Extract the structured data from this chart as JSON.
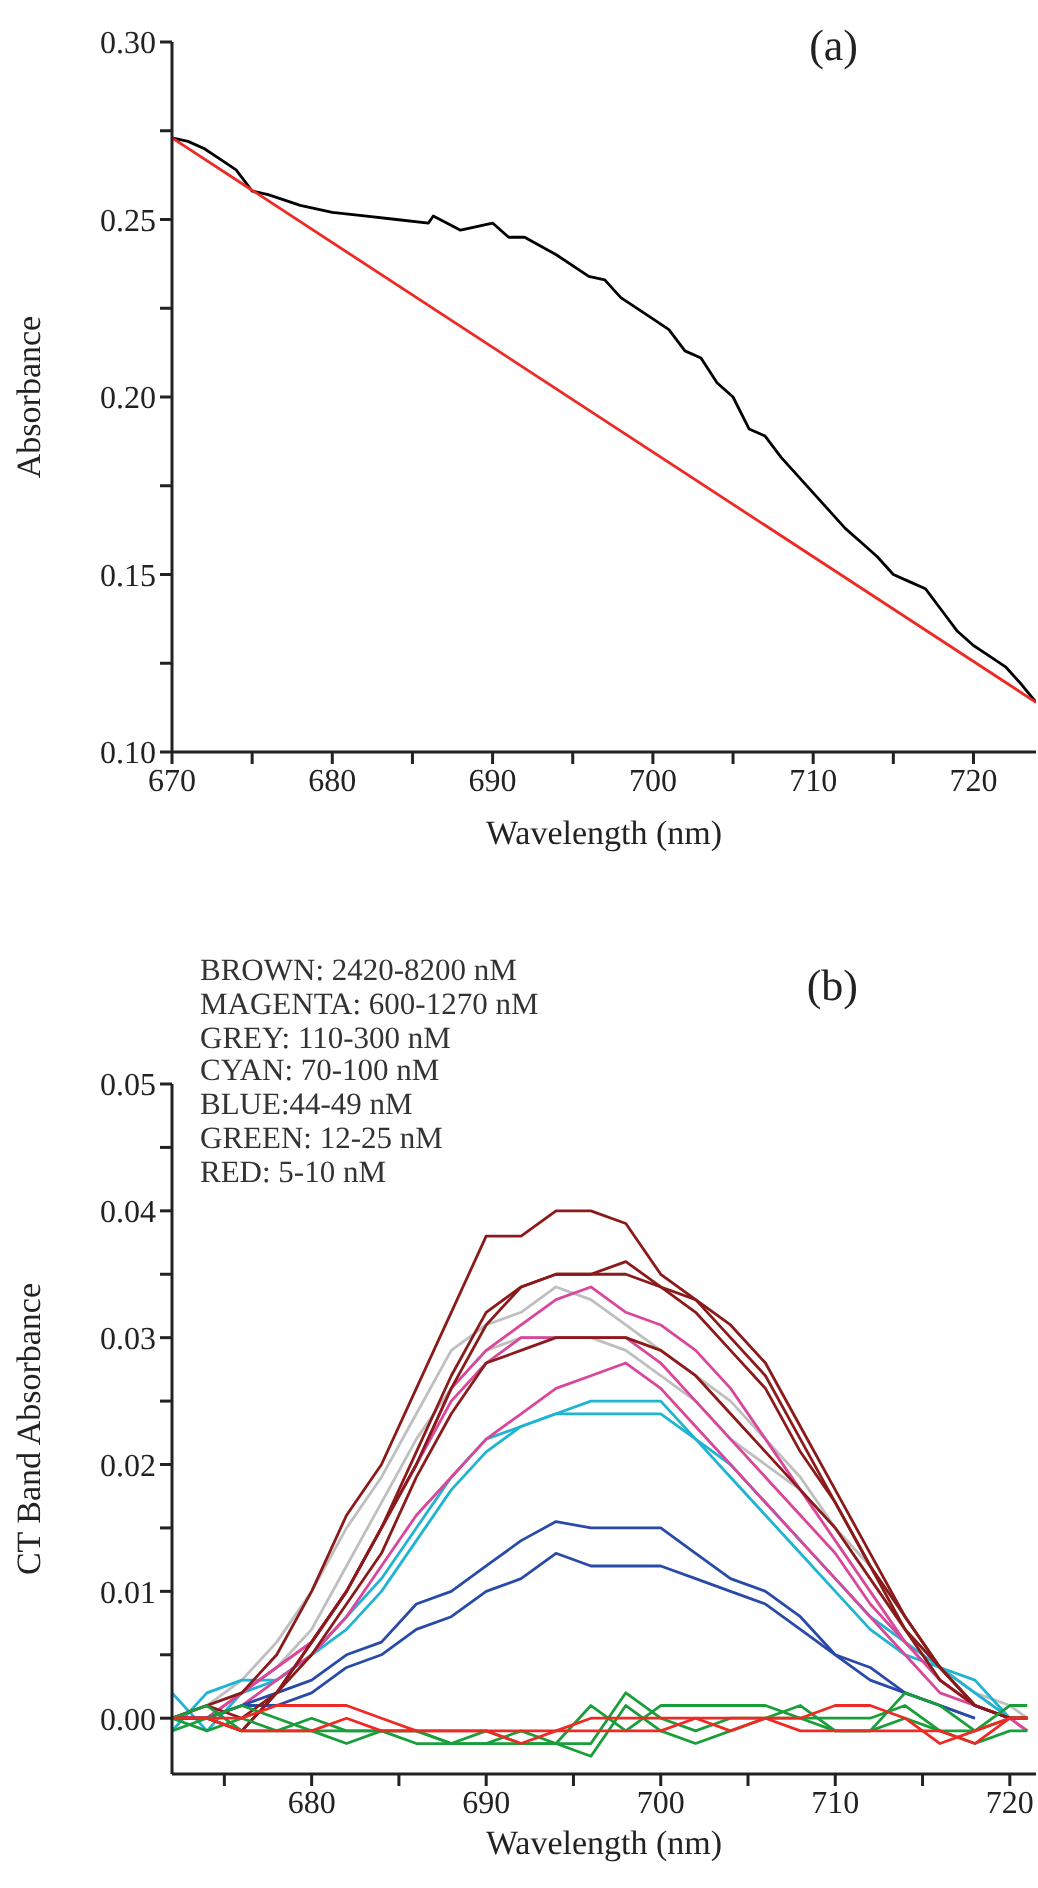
{
  "chart_data": [
    {
      "type": "line",
      "title": "(a)",
      "xlabel": "Wavelength (nm)",
      "ylabel": "Absorbance",
      "xlim": [
        670,
        723.9
      ],
      "ylim": [
        0.1,
        0.3
      ],
      "xticks": [
        670,
        {
          "value": 675,
          "label": null
        },
        680,
        {
          "value": 685,
          "label": null
        },
        690,
        {
          "value": 695,
          "label": null
        },
        700,
        {
          "value": 705,
          "label": null
        },
        710,
        {
          "value": 715,
          "label": null
        },
        720
      ],
      "yticks": [
        {
          "value": 0.1,
          "label": "0.10"
        },
        {
          "value": 0.125,
          "label": null
        },
        0.15,
        {
          "value": 0.175,
          "label": null
        },
        {
          "value": 0.2,
          "label": "0.20"
        },
        {
          "value": 0.225,
          "label": null
        },
        0.25,
        {
          "value": 0.275,
          "label": null
        },
        {
          "value": 0.3,
          "label": "0.30"
        }
      ],
      "grid": false,
      "legend": false,
      "marker": "none",
      "line_style": "solid",
      "series": [
        {
          "color": "#000000",
          "x": [
            670,
            671,
            672,
            673,
            674,
            675,
            676,
            678,
            680,
            682,
            684,
            686,
            686.3,
            688,
            690,
            691,
            692,
            694,
            696,
            697,
            698,
            700,
            701,
            702,
            703,
            704,
            705,
            706,
            707,
            708,
            709,
            710,
            711,
            712,
            713,
            714,
            715,
            716,
            717,
            718,
            719,
            720,
            721,
            722,
            723,
            723.9
          ],
          "values": [
            0.273,
            0.272,
            0.27,
            0.267,
            0.264,
            0.258,
            0.257,
            0.254,
            0.252,
            0.251,
            0.25,
            0.249,
            0.251,
            0.247,
            0.249,
            0.245,
            0.245,
            0.24,
            0.234,
            0.233,
            0.228,
            0.222,
            0.219,
            0.213,
            0.211,
            0.204,
            0.2,
            0.191,
            0.189,
            0.183,
            0.178,
            0.173,
            0.168,
            0.163,
            0.159,
            0.155,
            0.15,
            0.148,
            0.146,
            0.14,
            0.134,
            0.13,
            0.127,
            0.124,
            0.119,
            0.114
          ]
        },
        {
          "color": "#ee2a24",
          "x": [
            670,
            723.9
          ],
          "values": [
            0.273,
            0.114
          ]
        }
      ]
    },
    {
      "type": "line",
      "title": "(b)",
      "xlabel": "Wavelength (nm)",
      "ylabel": "CT Band Absorbance",
      "xlim": [
        672,
        721.5
      ],
      "ylim": [
        -0.0044,
        0.05
      ],
      "xticks": [
        {
          "value": 675,
          "label": null
        },
        680,
        {
          "value": 685,
          "label": null
        },
        690,
        {
          "value": 695,
          "label": null
        },
        700,
        {
          "value": 705,
          "label": null
        },
        710,
        {
          "value": 715,
          "label": null
        },
        720
      ],
      "yticks": [
        {
          "value": 0,
          "label": "0.00"
        },
        {
          "value": 0.005,
          "label": null
        },
        0.01,
        {
          "value": 0.015,
          "label": null
        },
        0.02,
        {
          "value": 0.025,
          "label": null
        },
        0.03,
        {
          "value": 0.035,
          "label": null
        },
        0.04,
        {
          "value": 0.045,
          "label": null
        },
        0.05
      ],
      "grid": false,
      "legend": false,
      "marker": "none",
      "line_style": "solid",
      "annotations": [
        "BROWN: 2420-8200 nM",
        "MAGENTA: 600-1270 nM",
        "GREY: 110-300 nM",
        "CYAN: 70-100 nM",
        "BLUE:44-49 nM",
        "GREEN: 12-25 nM",
        "RED: 5-10 nM"
      ],
      "x": [
        672,
        674,
        676,
        678,
        680,
        682,
        684,
        686,
        688,
        690,
        692,
        694,
        696,
        698,
        700,
        702,
        704,
        706,
        708,
        710,
        712,
        714,
        716,
        718,
        720,
        721
      ],
      "series": [
        {
          "color": "#bfbfbf",
          "values": [
            0.0,
            0.001,
            0.003,
            0.006,
            0.01,
            0.015,
            0.019,
            0.024,
            0.029,
            0.031,
            0.032,
            0.034,
            0.033,
            0.031,
            0.029,
            0.027,
            0.025,
            0.022,
            0.019,
            0.015,
            0.011,
            0.007,
            0.004,
            0.002,
            0.001,
            0.0
          ]
        },
        {
          "color": "#bfbfbf",
          "values": [
            0.0,
            0.001,
            0.002,
            0.004,
            0.007,
            0.012,
            0.017,
            0.022,
            0.026,
            0.029,
            0.03,
            0.03,
            0.03,
            0.029,
            0.027,
            0.025,
            0.022,
            0.02,
            0.018,
            0.015,
            0.012,
            0.008,
            0.004,
            0.002,
            0.0,
            0.0
          ]
        },
        {
          "color": "#1fb4d2",
          "values": [
            -0.001,
            0.002,
            0.003,
            0.003,
            0.005,
            0.008,
            0.011,
            0.015,
            0.019,
            0.022,
            0.023,
            0.024,
            0.025,
            0.025,
            0.025,
            0.022,
            0.02,
            0.017,
            0.014,
            0.011,
            0.008,
            0.006,
            0.004,
            0.003,
            0.0,
            0.0
          ]
        },
        {
          "color": "#1fb4d2",
          "values": [
            0.002,
            -0.001,
            0.002,
            0.003,
            0.005,
            0.007,
            0.01,
            0.014,
            0.018,
            0.021,
            0.023,
            0.024,
            0.024,
            0.024,
            0.024,
            0.022,
            0.019,
            0.016,
            0.013,
            0.01,
            0.007,
            0.005,
            0.004,
            0.002,
            0.0,
            0.0
          ]
        },
        {
          "color": "#d9479b",
          "values": [
            0.0,
            0.0,
            0.002,
            0.004,
            0.006,
            0.01,
            0.015,
            0.02,
            0.026,
            0.029,
            0.031,
            0.033,
            0.034,
            0.032,
            0.031,
            0.029,
            0.026,
            0.022,
            0.018,
            0.014,
            0.01,
            0.006,
            0.003,
            0.001,
            0.0,
            0.0
          ]
        },
        {
          "color": "#d9479b",
          "values": [
            0.0,
            0.0,
            0.002,
            0.004,
            0.006,
            0.01,
            0.015,
            0.02,
            0.025,
            0.028,
            0.03,
            0.03,
            0.03,
            0.03,
            0.028,
            0.025,
            0.022,
            0.019,
            0.016,
            0.013,
            0.009,
            0.006,
            0.003,
            0.001,
            0.0,
            -0.001
          ]
        },
        {
          "color": "#d9479b",
          "values": [
            0.0,
            0.0,
            0.001,
            0.003,
            0.005,
            0.008,
            0.012,
            0.016,
            0.019,
            0.022,
            0.024,
            0.026,
            0.027,
            0.028,
            0.026,
            0.023,
            0.02,
            0.017,
            0.014,
            0.011,
            0.008,
            0.005,
            0.002,
            0.001,
            0.0,
            -0.001
          ]
        },
        {
          "color": "#2a4aa8",
          "values": [
            0.0,
            0.0,
            0.001,
            0.002,
            0.003,
            0.005,
            0.006,
            0.009,
            0.01,
            0.012,
            0.014,
            0.0155,
            0.015,
            0.015,
            0.015,
            0.013,
            0.011,
            0.01,
            0.008,
            0.005,
            0.004,
            0.002,
            0.001,
            0.0,
            null,
            null
          ]
        },
        {
          "color": "#2a4aa8",
          "values": [
            0.0,
            0.0,
            0.001,
            0.001,
            0.002,
            0.004,
            0.005,
            0.007,
            0.008,
            0.01,
            0.011,
            0.013,
            0.012,
            0.012,
            0.012,
            0.011,
            0.01,
            0.009,
            0.007,
            0.005,
            0.003,
            0.002,
            0.001,
            0.0,
            null,
            null
          ]
        },
        {
          "color": "#8b1a1a",
          "values": [
            0.0,
            0.001,
            0.002,
            0.005,
            0.01,
            0.016,
            0.02,
            0.026,
            0.032,
            0.038,
            0.038,
            0.04,
            0.04,
            0.039,
            0.035,
            0.033,
            0.031,
            0.028,
            0.023,
            0.018,
            0.013,
            0.008,
            0.004,
            0.001,
            0.0,
            0.0
          ]
        },
        {
          "color": "#8b1a1a",
          "values": [
            0.0,
            0.0,
            -0.001,
            0.002,
            0.006,
            0.01,
            0.015,
            0.021,
            0.027,
            0.032,
            0.034,
            0.035,
            0.035,
            0.036,
            0.034,
            0.033,
            0.03,
            0.027,
            0.022,
            0.017,
            0.012,
            0.008,
            0.004,
            0.001,
            0.0,
            0.0
          ]
        },
        {
          "color": "#8b1a1a",
          "values": [
            0.0,
            0.001,
            0.0,
            0.002,
            0.006,
            0.01,
            0.015,
            0.02,
            0.026,
            0.031,
            0.034,
            0.035,
            0.035,
            0.035,
            0.034,
            0.032,
            0.029,
            0.026,
            0.021,
            0.017,
            0.012,
            0.007,
            0.003,
            0.001,
            0.0,
            0.0
          ]
        },
        {
          "color": "#8b1a1a",
          "values": [
            0.0,
            0.0,
            -0.001,
            0.002,
            0.005,
            0.009,
            0.013,
            0.019,
            0.024,
            0.028,
            0.029,
            0.03,
            0.03,
            0.03,
            0.029,
            0.027,
            0.024,
            0.021,
            0.018,
            0.015,
            0.011,
            0.007,
            0.004,
            0.001,
            0.0,
            0.0
          ]
        },
        {
          "color": "#1a9e3a",
          "values": [
            0.0,
            0.001,
            -0.001,
            -0.001,
            0.0,
            -0.001,
            -0.001,
            -0.001,
            -0.002,
            -0.001,
            -0.002,
            -0.002,
            0.001,
            -0.001,
            0.001,
            0.001,
            0.001,
            0.001,
            0.0,
            0.0,
            0.0,
            0.001,
            -0.001,
            -0.002,
            -0.001,
            -0.001
          ]
        },
        {
          "color": "#1a9e3a",
          "values": [
            0.0,
            -0.001,
            0.0,
            -0.001,
            -0.001,
            -0.002,
            -0.001,
            -0.001,
            -0.002,
            -0.002,
            -0.001,
            -0.002,
            -0.002,
            0.002,
            0.0,
            -0.001,
            0.0,
            0.0,
            0.0,
            -0.001,
            -0.001,
            0.002,
            0.001,
            -0.001,
            0.0,
            0.0
          ]
        },
        {
          "color": "#1a9e3a",
          "values": [
            -0.001,
            0.0,
            0.001,
            0.0,
            -0.001,
            -0.001,
            -0.001,
            -0.002,
            -0.002,
            -0.002,
            -0.002,
            -0.002,
            -0.003,
            0.001,
            -0.001,
            -0.002,
            -0.001,
            0.0,
            0.001,
            -0.001,
            -0.001,
            0.0,
            -0.001,
            -0.001,
            0.001,
            0.001
          ]
        },
        {
          "color": "#ee2a24",
          "values": [
            0.0,
            0.0,
            0.0,
            0.001,
            0.001,
            0.001,
            0.0,
            -0.001,
            -0.001,
            -0.001,
            -0.001,
            -0.001,
            0.0,
            0.0,
            0.0,
            0.0,
            0.0,
            0.0,
            0.0,
            0.001,
            0.001,
            0.0,
            -0.002,
            -0.001,
            0.0,
            0.0
          ]
        },
        {
          "color": "#ee2a24",
          "values": [
            0.0,
            0.0,
            -0.001,
            -0.001,
            -0.001,
            0.0,
            -0.001,
            -0.001,
            -0.001,
            -0.001,
            -0.002,
            -0.001,
            -0.001,
            -0.001,
            -0.001,
            0.0,
            -0.001,
            0.0,
            -0.001,
            -0.001,
            -0.001,
            -0.001,
            -0.001,
            -0.002,
            0.0,
            0.0
          ]
        }
      ]
    }
  ]
}
